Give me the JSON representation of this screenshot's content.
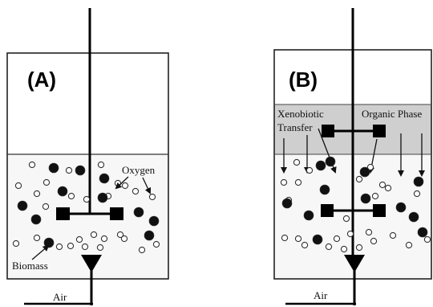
{
  "panel_a": {
    "letter": "(A)",
    "labels": {
      "oxygen": "Oxygen",
      "biomass": "Biomass",
      "air": "Air"
    }
  },
  "panel_b": {
    "letter": "(B)",
    "labels": {
      "xenobiotic_line1": "Xenobiotic",
      "xenobiotic_line2": "Transfer",
      "organic_phase": "Organic Phase",
      "air": "Air"
    }
  },
  "colors": {
    "organic_phase_fill": "#cfcfcf",
    "liquid_fill": "#f7f7f7",
    "outline": "#222222",
    "biomass": "#111111"
  }
}
